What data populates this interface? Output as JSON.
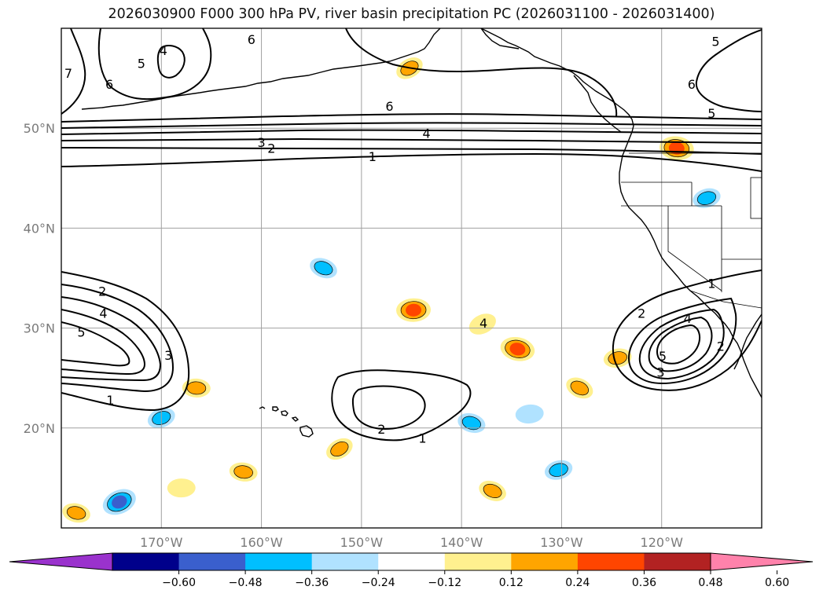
{
  "title": "2026030900 F000 300 hPa PV, river basin precipitation PC (2026031100 - 2026031400)",
  "map": {
    "projection": "cylindrical",
    "lon_range": [
      -180,
      -110
    ],
    "lat_range": [
      10,
      60
    ],
    "gridlines": true,
    "lon_ticks": [
      {
        "lon": -170,
        "label": "170°W"
      },
      {
        "lon": -160,
        "label": "160°W"
      },
      {
        "lon": -150,
        "label": "150°W"
      },
      {
        "lon": -140,
        "label": "140°W"
      },
      {
        "lon": -130,
        "label": "130°W"
      },
      {
        "lon": -120,
        "label": "120°W"
      }
    ],
    "lat_ticks": [
      {
        "lat": 20,
        "label": "20°N"
      },
      {
        "lat": 30,
        "label": "30°N"
      },
      {
        "lat": 40,
        "label": "40°N"
      },
      {
        "lat": 50,
        "label": "50°N"
      }
    ]
  },
  "contours": {
    "variable": "300 hPa PV",
    "color": "#000000",
    "labels": [
      {
        "text": "7",
        "lon": -179.3,
        "lat": 55.5
      },
      {
        "text": "6",
        "lon": -175.2,
        "lat": 54.4
      },
      {
        "text": "5",
        "lon": -172.0,
        "lat": 56.5
      },
      {
        "text": "4",
        "lon": -169.8,
        "lat": 57.8
      },
      {
        "text": "6",
        "lon": -161.0,
        "lat": 58.9
      },
      {
        "text": "6",
        "lon": -147.2,
        "lat": 52.2
      },
      {
        "text": "4",
        "lon": -143.5,
        "lat": 49.5
      },
      {
        "text": "3",
        "lon": -160.0,
        "lat": 48.6
      },
      {
        "text": "2",
        "lon": -159.0,
        "lat": 48.0
      },
      {
        "text": "1",
        "lon": -148.9,
        "lat": 47.2
      },
      {
        "text": "6",
        "lon": -117.0,
        "lat": 54.4
      },
      {
        "text": "5",
        "lon": -115.0,
        "lat": 51.5
      },
      {
        "text": "5",
        "lon": -114.6,
        "lat": 58.7
      },
      {
        "text": "2",
        "lon": -175.9,
        "lat": 33.7
      },
      {
        "text": "4",
        "lon": -175.8,
        "lat": 31.5
      },
      {
        "text": "5",
        "lon": -178.0,
        "lat": 29.6
      },
      {
        "text": "3",
        "lon": -169.3,
        "lat": 27.3
      },
      {
        "text": "1",
        "lon": -175.1,
        "lat": 22.8
      },
      {
        "text": "2",
        "lon": -148.0,
        "lat": 19.9
      },
      {
        "text": "1",
        "lon": -143.9,
        "lat": 19.0
      },
      {
        "text": "1",
        "lon": -115.0,
        "lat": 34.5
      },
      {
        "text": "2",
        "lon": -122.0,
        "lat": 31.5
      },
      {
        "text": "4",
        "lon": -117.4,
        "lat": 31.0
      },
      {
        "text": "4",
        "lon": -137.8,
        "lat": 30.5
      },
      {
        "text": "5",
        "lon": -119.9,
        "lat": 27.2
      },
      {
        "text": "3",
        "lon": -120.1,
        "lat": 25.6
      },
      {
        "text": "2",
        "lon": -114.1,
        "lat": 28.2
      }
    ]
  },
  "precip_blobs": [
    {
      "lon": -145.2,
      "lat": 56.0,
      "sign": "pos",
      "level": 0.3
    },
    {
      "lon": -118.5,
      "lat": 48.0,
      "sign": "pos",
      "level": 0.42
    },
    {
      "lon": -115.5,
      "lat": 43.0,
      "sign": "neg",
      "level": -0.3
    },
    {
      "lon": -153.8,
      "lat": 36.0,
      "sign": "neg",
      "level": -0.3
    },
    {
      "lon": -144.8,
      "lat": 31.8,
      "sign": "pos",
      "level": 0.42
    },
    {
      "lon": -137.9,
      "lat": 30.4,
      "sign": "pos",
      "level": 0.18
    },
    {
      "lon": -134.4,
      "lat": 27.9,
      "sign": "pos",
      "level": 0.42
    },
    {
      "lon": -124.4,
      "lat": 27.0,
      "sign": "pos",
      "level": 0.3
    },
    {
      "lon": -128.2,
      "lat": 24.0,
      "sign": "pos",
      "level": 0.3
    },
    {
      "lon": -166.5,
      "lat": 24.0,
      "sign": "pos",
      "level": 0.3
    },
    {
      "lon": -170.0,
      "lat": 21.0,
      "sign": "neg",
      "level": -0.3
    },
    {
      "lon": -139.0,
      "lat": 20.5,
      "sign": "neg",
      "level": -0.3
    },
    {
      "lon": -133.2,
      "lat": 21.4,
      "sign": "neg",
      "level": -0.18
    },
    {
      "lon": -152.2,
      "lat": 17.9,
      "sign": "pos",
      "level": 0.3
    },
    {
      "lon": -161.8,
      "lat": 15.6,
      "sign": "pos",
      "level": 0.3
    },
    {
      "lon": -130.3,
      "lat": 15.8,
      "sign": "neg",
      "level": -0.3
    },
    {
      "lon": -136.9,
      "lat": 13.7,
      "sign": "pos",
      "level": 0.3
    },
    {
      "lon": -168.0,
      "lat": 14.0,
      "sign": "pos",
      "level": 0.18
    },
    {
      "lon": -174.2,
      "lat": 12.6,
      "sign": "neg",
      "level": -0.42
    },
    {
      "lon": -178.5,
      "lat": 11.5,
      "sign": "pos",
      "level": 0.3
    }
  ],
  "colorbar": {
    "extend": "both",
    "colors": [
      "#9a32cd",
      "#00008b",
      "#3a5fcd",
      "#00bfff",
      "#b0e2ff",
      "#ffffff",
      "#fff08f",
      "#ffa500",
      "#ff4500",
      "#b22222",
      "#ff82ab"
    ],
    "ticks": [
      "−0.60",
      "−0.48",
      "−0.36",
      "−0.24",
      "−0.12",
      "0.12",
      "0.24",
      "0.36",
      "0.48",
      "0.60"
    ]
  }
}
